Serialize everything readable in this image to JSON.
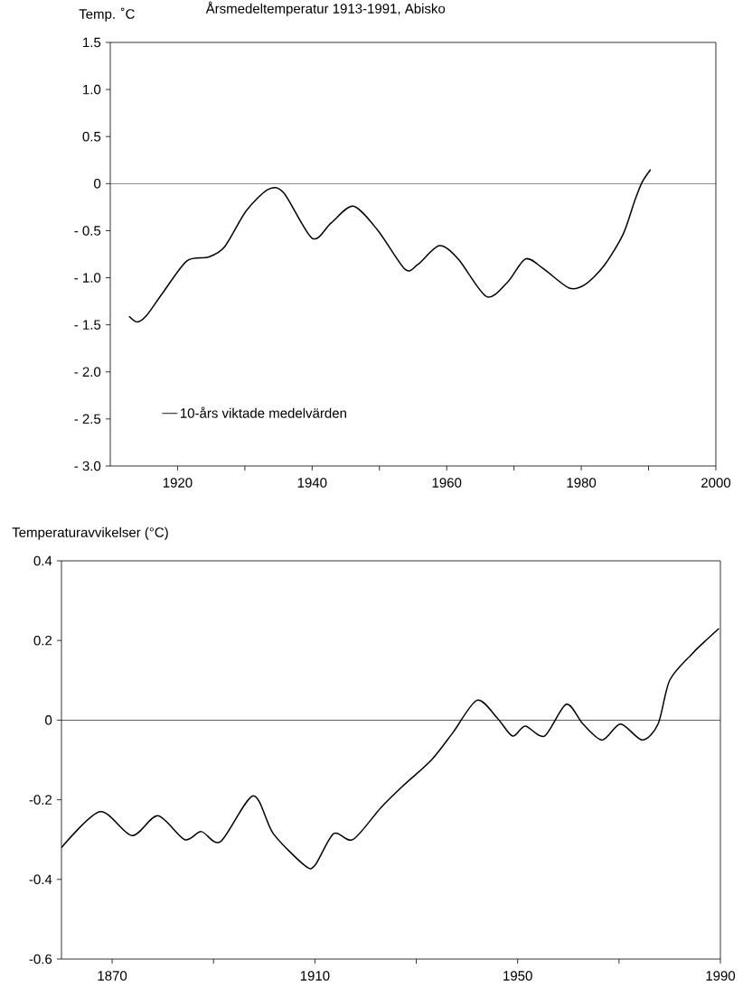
{
  "chart_data": [
    {
      "type": "line",
      "title": "Årsmedeltemperatur 1913-1991, Abisko",
      "ylabel": "Temp. ˚C",
      "series": [
        {
          "name": "10-års viktade medelvärden",
          "color": "#000000",
          "x": [
            1912.8,
            1914,
            1915.4,
            1917.9,
            1921.4,
            1924.6,
            1927,
            1930.2,
            1933.5,
            1935.8,
            1940,
            1942.8,
            1946.1,
            1949.8,
            1953.8,
            1955.7,
            1958.9,
            1961.7,
            1965.9,
            1969,
            1971.7,
            1974.3,
            1978.2,
            1980.6,
            1983.4,
            1986.2,
            1987.9,
            1989,
            1990.3
          ],
          "values": [
            -1.41,
            -1.47,
            -1.4,
            -1.15,
            -0.82,
            -0.78,
            -0.67,
            -0.29,
            -0.06,
            -0.1,
            -0.58,
            -0.42,
            -0.24,
            -0.5,
            -0.91,
            -0.86,
            -0.66,
            -0.8,
            -1.2,
            -1.05,
            -0.8,
            -0.9,
            -1.11,
            -1.07,
            -0.87,
            -0.54,
            -0.19,
            0.01,
            0.15
          ]
        }
      ],
      "xlim": [
        1910,
        2000
      ],
      "ylim": [
        -3.0,
        1.5
      ],
      "xticks": [
        1920,
        {
          "value": 1930,
          "label": null
        },
        1940,
        {
          "value": 1950,
          "label": null
        },
        1960,
        {
          "value": 1970,
          "label": null
        },
        1980,
        {
          "value": 1990,
          "label": null
        },
        2000
      ],
      "yticks": [
        {
          "value": 1.5,
          "label": "1.5"
        },
        {
          "value": 1.0,
          "label": "1.0"
        },
        {
          "value": 0.5,
          "label": "0.5"
        },
        {
          "value": 0,
          "label": "0"
        },
        {
          "value": -0.5,
          "label": "- 0.5"
        },
        {
          "value": -1.0,
          "label": "- 1.0"
        },
        {
          "value": -1.5,
          "label": "- 1.5"
        },
        {
          "value": -2.0,
          "label": "- 2.0"
        },
        {
          "value": -2.5,
          "label": "- 2.5"
        },
        {
          "value": -3.0,
          "label": "- 3.0"
        }
      ],
      "ref_lines": [
        {
          "axis": "y",
          "value": 0
        }
      ],
      "legend": "bottom left",
      "marker": "none"
    },
    {
      "type": "line",
      "ylabel": "Temperaturavvikelser (°C)",
      "series": [
        {
          "color": "#000000",
          "x": [
            1860,
            1867.6,
            1873.9,
            1879,
            1884.3,
            1887.6,
            1891.4,
            1897.8,
            1901.8,
            1908,
            1910,
            1913.7,
            1917.5,
            1923,
            1927.4,
            1933,
            1937.3,
            1942,
            1946,
            1949,
            1951.5,
            1955.3,
            1959.6,
            1962.9,
            1966.7,
            1970.3,
            1974.6,
            1977.7,
            1980,
            1984.3,
            1986.7,
            1989.7
          ],
          "values": [
            -0.32,
            -0.23,
            -0.29,
            -0.24,
            -0.3,
            -0.28,
            -0.305,
            -0.19,
            -0.285,
            -0.365,
            -0.365,
            -0.285,
            -0.3,
            -0.22,
            -0.165,
            -0.1,
            -0.03,
            0.05,
            0.005,
            -0.04,
            -0.015,
            -0.04,
            0.04,
            -0.01,
            -0.05,
            -0.01,
            -0.05,
            -0.01,
            0.1,
            0.165,
            0.195,
            0.23
          ]
        }
      ],
      "xlim": [
        1860,
        1990
      ],
      "ylim": [
        -0.6,
        0.4
      ],
      "xticks": [
        1870,
        {
          "value": 1890,
          "label": null
        },
        1910,
        {
          "value": 1930,
          "label": null
        },
        1950,
        {
          "value": 1970,
          "label": null
        },
        1990
      ],
      "yticks": [
        {
          "value": 0.4,
          "label": "0.4"
        },
        {
          "value": 0.2,
          "label": "0.2"
        },
        {
          "value": 0,
          "label": "0"
        },
        {
          "value": -0.2,
          "label": "-0.2"
        },
        {
          "value": -0.4,
          "label": "-0.4"
        },
        {
          "value": -0.6,
          "label": "-0.6"
        }
      ],
      "ref_lines": [
        {
          "axis": "y",
          "value": 0
        }
      ],
      "marker": "none"
    }
  ]
}
